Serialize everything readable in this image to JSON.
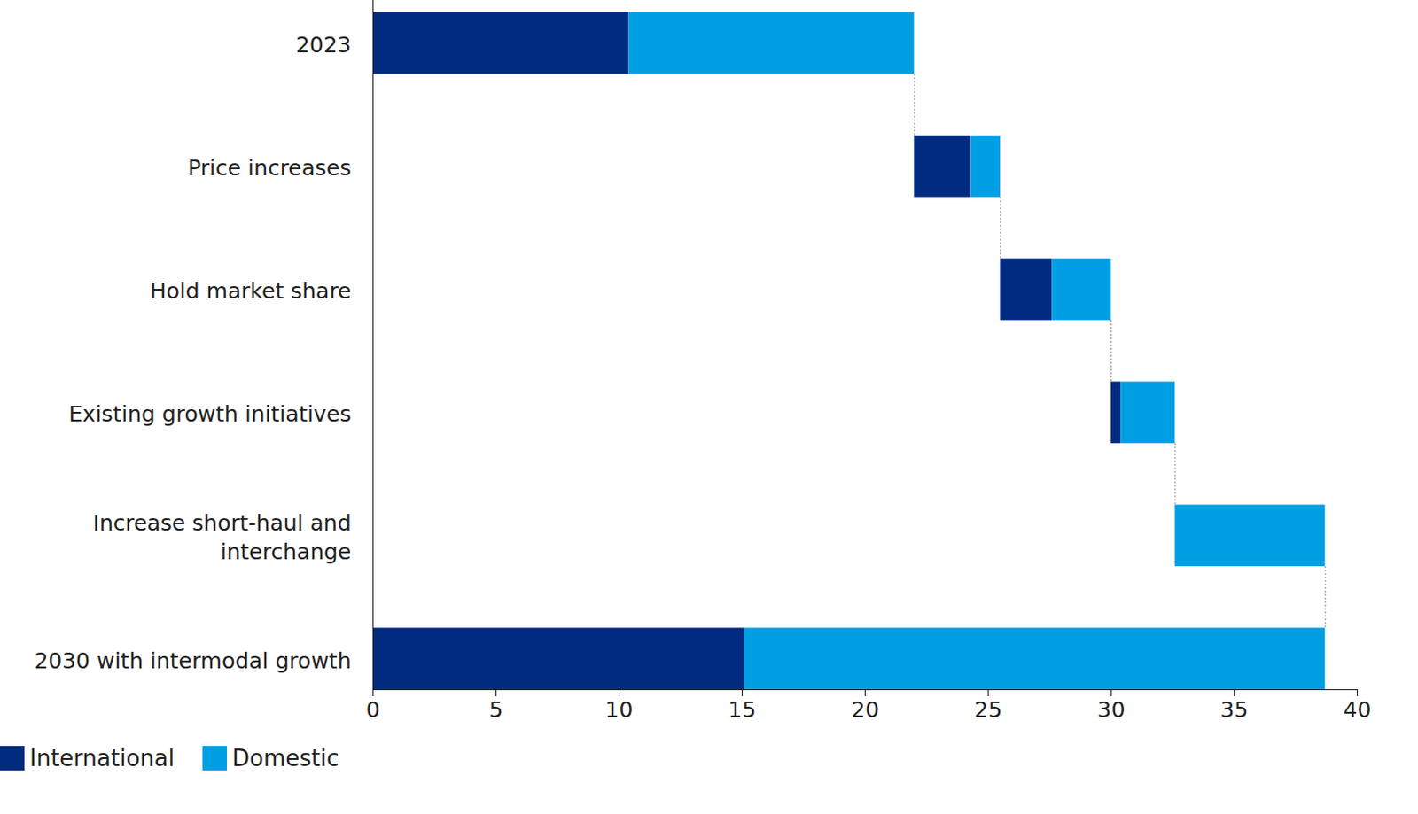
{
  "chart_data": {
    "type": "waterfall",
    "orientation": "horizontal",
    "stacked": true,
    "categories": [
      "2023",
      "Price increases",
      "Hold market share",
      "Existing growth initiatives",
      "Increase short-haul and\ninterchange",
      "2030 with intermodal growth"
    ],
    "series": [
      {
        "name": "International",
        "color": "#002b7f",
        "values": [
          10.4,
          2.3,
          2.1,
          0.4,
          0,
          15.1
        ]
      },
      {
        "name": "Domestic",
        "color": "#009fe3",
        "values": [
          11.6,
          1.2,
          2.4,
          2.2,
          6.1,
          23.6
        ]
      }
    ],
    "xlim": [
      0,
      40
    ],
    "xticks": [
      0,
      5,
      10,
      15,
      20,
      25,
      30,
      35,
      40
    ],
    "grid": false,
    "legend": "bottom-left"
  }
}
